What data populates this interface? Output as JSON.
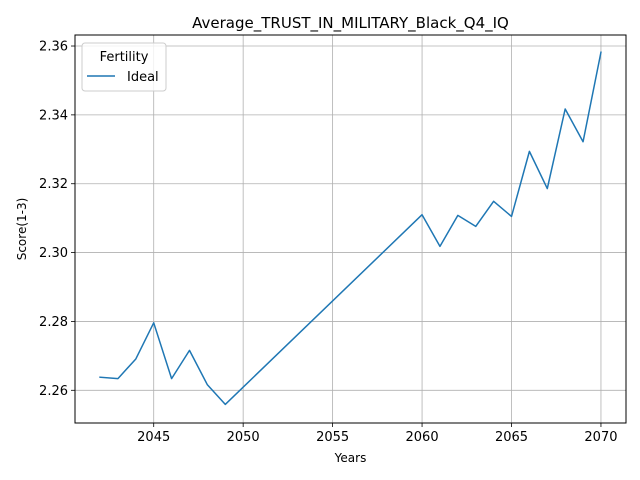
{
  "chart_data": {
    "type": "line",
    "title": "Average_TRUST_IN_MILITARY_Black_Q4_IQ",
    "xlabel": "Years",
    "ylabel": "Score(1-3)",
    "xlim": [
      2040.6,
      2071.4
    ],
    "ylim": [
      2.2505,
      2.3632
    ],
    "xticks": [
      2045,
      2050,
      2055,
      2060,
      2065,
      2070
    ],
    "yticks": [
      2.26,
      2.28,
      2.3,
      2.32,
      2.34,
      2.36
    ],
    "ytick_labels": [
      "2.26",
      "2.28",
      "2.30",
      "2.32",
      "2.34",
      "2.36"
    ],
    "grid": true,
    "legend": {
      "title": "Fertility",
      "placement": "upper left"
    },
    "series": [
      {
        "name": "Ideal",
        "color": "#1f77b4",
        "x": [
          2042,
          2043,
          2044,
          2045,
          2046,
          2047,
          2048,
          2049,
          2060,
          2061,
          2062,
          2063,
          2064,
          2065,
          2066,
          2067,
          2068,
          2069,
          2070
        ],
        "values": [
          2.2638,
          2.2634,
          2.2691,
          2.2796,
          2.2634,
          2.2716,
          2.2616,
          2.2559,
          2.311,
          2.3018,
          2.3108,
          2.3076,
          2.3149,
          2.3105,
          2.3294,
          2.3186,
          2.3417,
          2.3322,
          2.3582
        ]
      }
    ]
  }
}
